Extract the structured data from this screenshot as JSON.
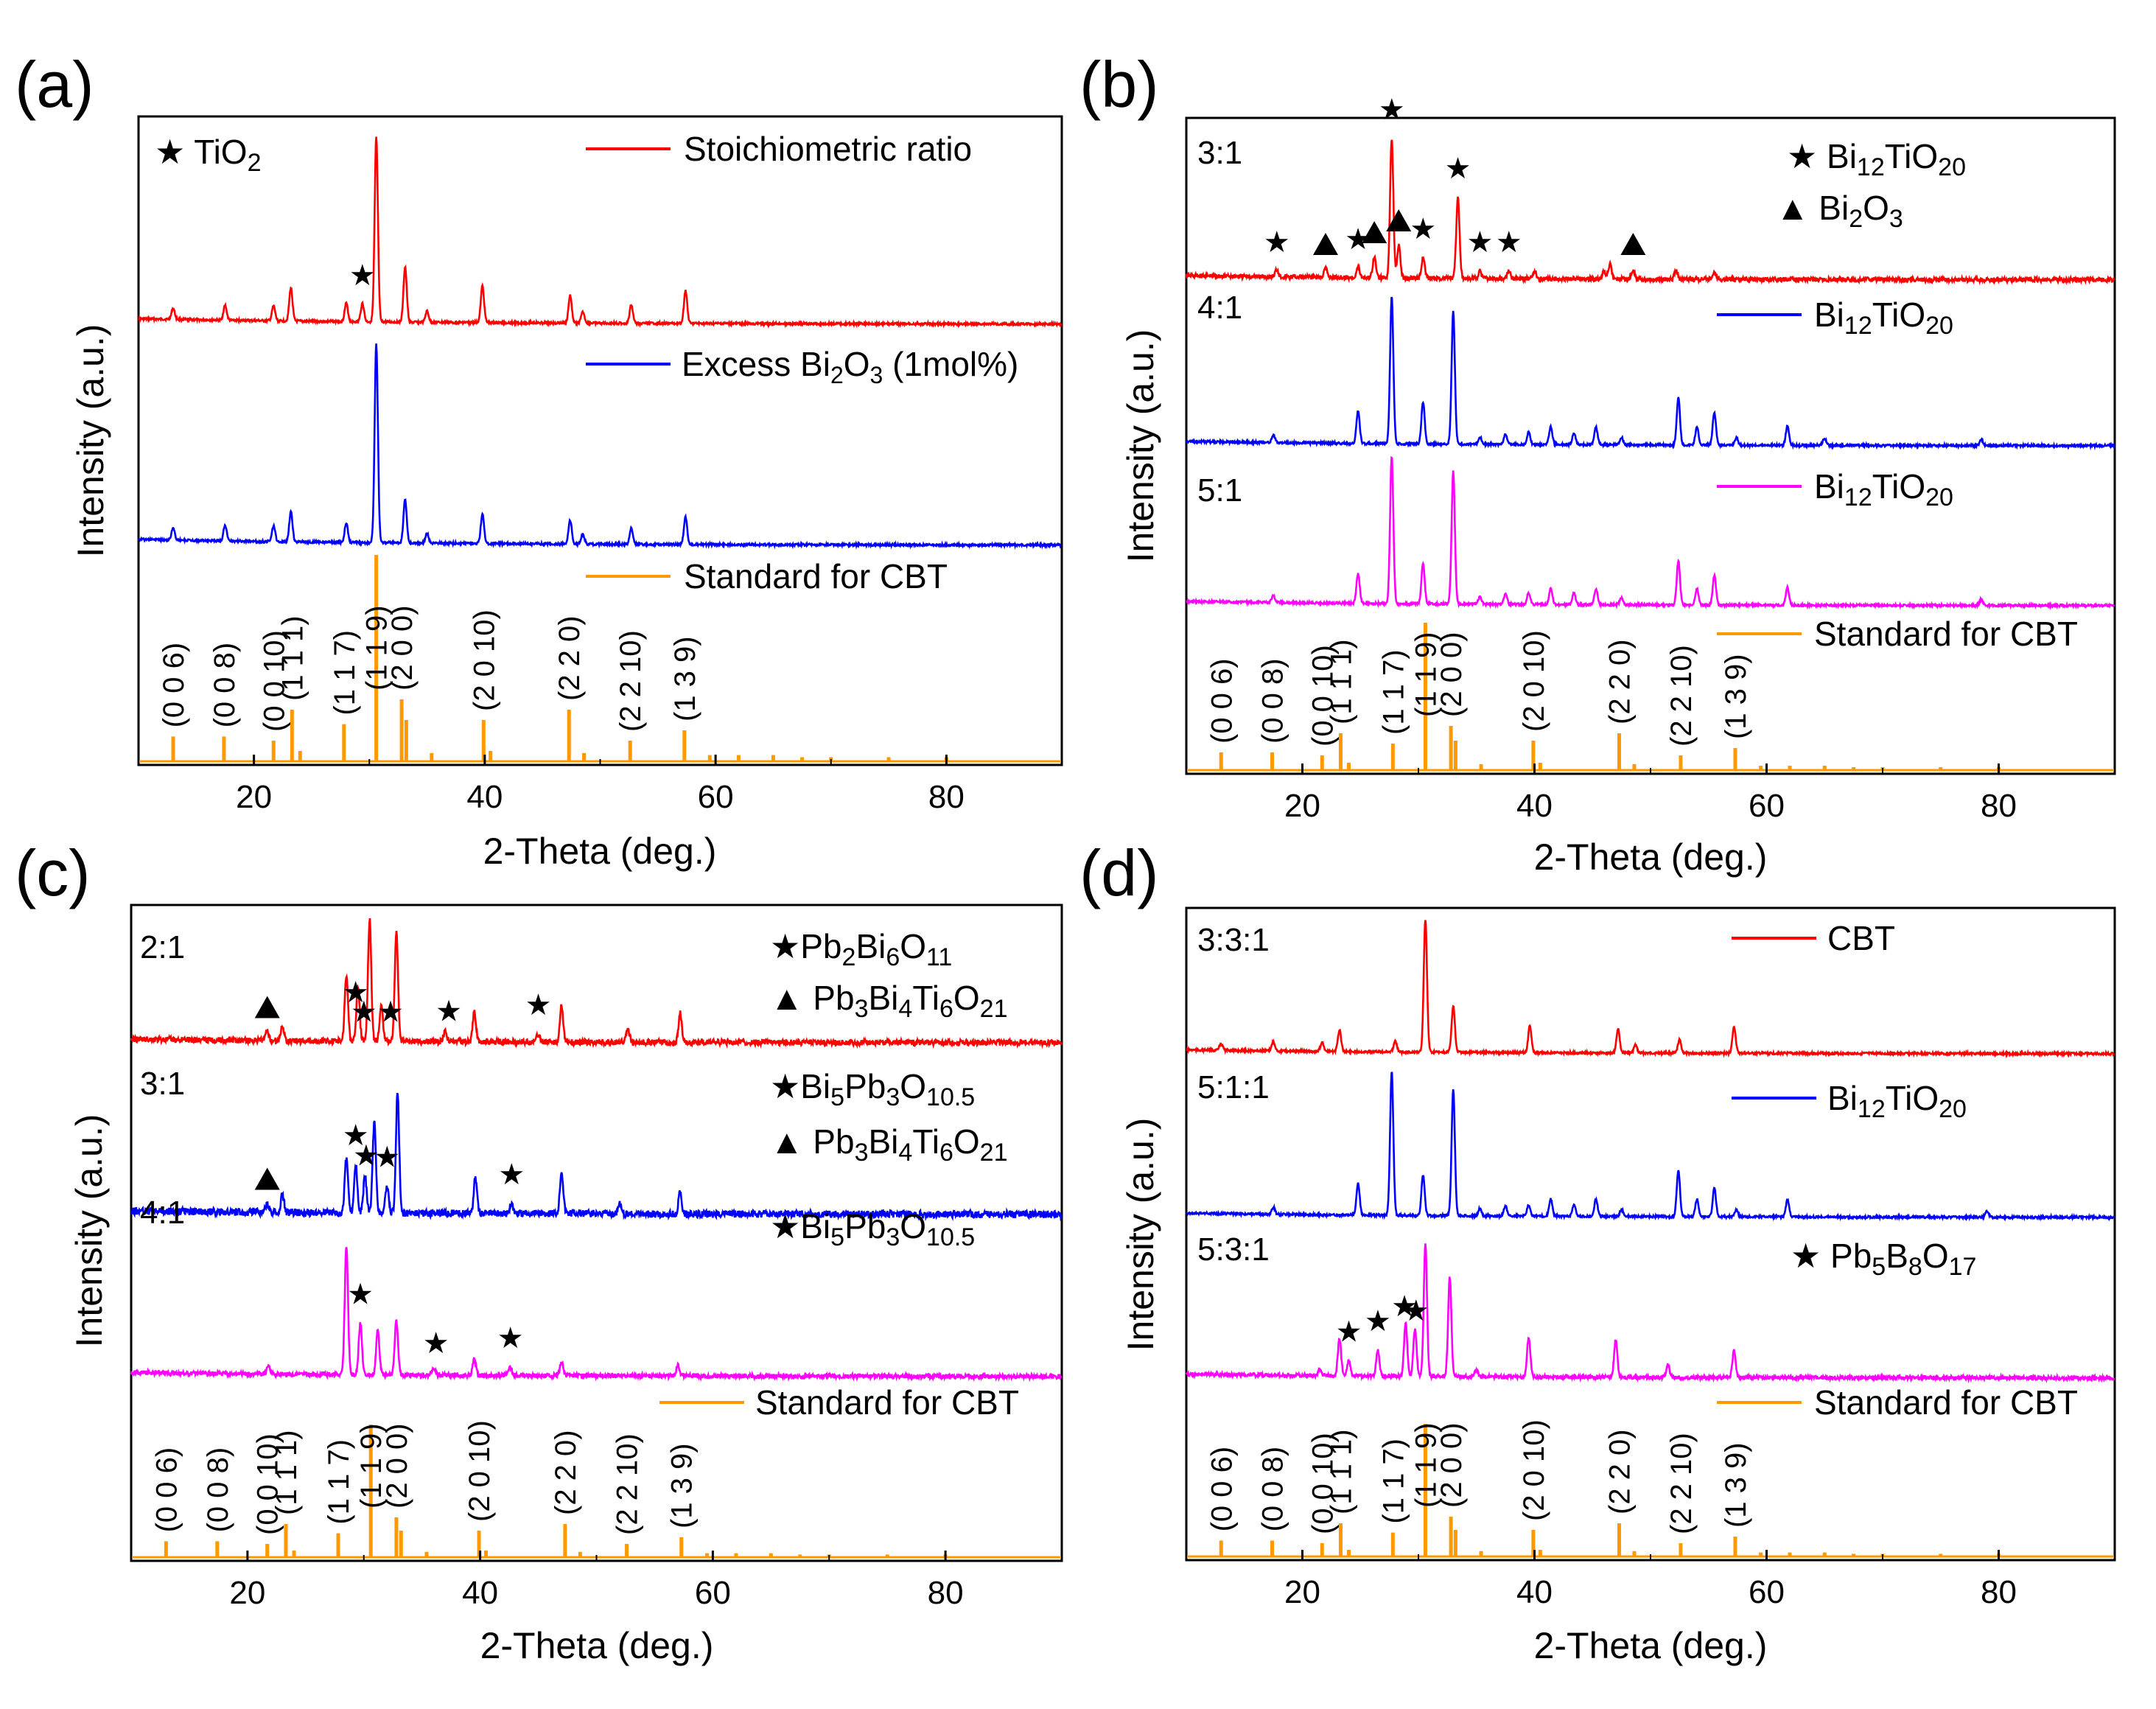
{
  "figure": {
    "panels": [
      {
        "id": "a",
        "label": "(a)"
      },
      {
        "id": "b",
        "label": "(b)"
      },
      {
        "id": "c",
        "label": "(c)"
      },
      {
        "id": "d",
        "label": "(d)"
      }
    ]
  },
  "colors": {
    "red": "#ff0000",
    "blue": "#0000ff",
    "magenta": "#ff00ff",
    "orange": "#ff9900",
    "black": "#000000"
  },
  "chart_data": [
    {
      "panel": "(a)",
      "type": "line",
      "xlabel": "2-Theta (deg.)",
      "ylabel": "Intensity (a.u.)",
      "xlim": [
        10,
        90
      ],
      "xticks": [
        20,
        40,
        60,
        80
      ],
      "marker_legend": [
        {
          "symbol": "star",
          "label": "TiO2"
        }
      ],
      "series": [
        {
          "name": "Stoichiometric ratio",
          "color": "#ff0000",
          "peaks": [
            [
              13,
              0.06
            ],
            [
              17.5,
              0.08
            ],
            [
              21.7,
              0.08
            ],
            [
              23.2,
              0.18
            ],
            [
              28,
              0.1
            ],
            [
              29.4,
              0.1
            ],
            [
              30.6,
              1.0
            ],
            [
              33.1,
              0.3
            ],
            [
              35,
              0.06
            ],
            [
              39.8,
              0.2
            ],
            [
              47.4,
              0.15
            ],
            [
              48.5,
              0.06
            ],
            [
              52.7,
              0.1
            ],
            [
              57.4,
              0.18
            ]
          ],
          "stars": [
            29.4
          ]
        },
        {
          "name": "Excess Bi2O3 (1mol%)",
          "color": "#0000ff",
          "peaks": [
            [
              13,
              0.06
            ],
            [
              17.5,
              0.08
            ],
            [
              21.7,
              0.08
            ],
            [
              23.2,
              0.15
            ],
            [
              28,
              0.1
            ],
            [
              30.6,
              1.0
            ],
            [
              33.1,
              0.22
            ],
            [
              35,
              0.05
            ],
            [
              39.8,
              0.15
            ],
            [
              47.4,
              0.12
            ],
            [
              48.5,
              0.05
            ],
            [
              52.7,
              0.08
            ],
            [
              57.4,
              0.14
            ]
          ]
        },
        {
          "name": "Standard for CBT",
          "color": "#ff9900",
          "standard": true
        }
      ]
    },
    {
      "panel": "(b)",
      "type": "line",
      "xlabel": "2-Theta (deg.)",
      "ylabel": "Intensity (a.u.)",
      "xlim": [
        10,
        90
      ],
      "xticks": [
        20,
        40,
        60,
        80
      ],
      "series": [
        {
          "name": "3:1",
          "ratio": "3:1",
          "legend": "Bi12TiO20 / Bi2O3",
          "color": "#ff0000",
          "peaks": [
            [
              17.8,
              0.05
            ],
            [
              22,
              0.06
            ],
            [
              24.8,
              0.07
            ],
            [
              26.2,
              0.14
            ],
            [
              27.7,
              0.95
            ],
            [
              28.3,
              0.22
            ],
            [
              30.4,
              0.14
            ],
            [
              33.4,
              0.55
            ],
            [
              35.3,
              0.05
            ],
            [
              37.8,
              0.05
            ],
            [
              40,
              0.05
            ],
            [
              46,
              0.05
            ],
            [
              46.5,
              0.1
            ],
            [
              48.5,
              0.06
            ],
            [
              52.2,
              0.06
            ],
            [
              55.5,
              0.05
            ]
          ],
          "stars": [
            17.8,
            24.8,
            27.7,
            30.4,
            33.4,
            35.3,
            37.8
          ],
          "triangles": [
            22,
            26.2,
            28.3,
            48.5
          ]
        },
        {
          "name": "4:1",
          "ratio": "4:1",
          "legend": "Bi12TiO20",
          "color": "#0000ff",
          "peaks": [
            [
              17.5,
              0.05
            ],
            [
              24.8,
              0.22
            ],
            [
              27.7,
              1.0
            ],
            [
              30.4,
              0.28
            ],
            [
              33,
              0.9
            ],
            [
              35.3,
              0.05
            ],
            [
              37.5,
              0.07
            ],
            [
              39.5,
              0.08
            ],
            [
              41.4,
              0.12
            ],
            [
              43.4,
              0.08
            ],
            [
              45.3,
              0.12
            ],
            [
              47.5,
              0.05
            ],
            [
              52.4,
              0.32
            ],
            [
              54,
              0.12
            ],
            [
              55.5,
              0.22
            ],
            [
              57.4,
              0.05
            ],
            [
              61.8,
              0.13
            ],
            [
              65,
              0.05
            ],
            [
              78.5,
              0.04
            ]
          ]
        },
        {
          "name": "5:1",
          "ratio": "5:1",
          "legend": "Bi12TiO20",
          "color": "#ff00ff",
          "peaks": [
            [
              17.5,
              0.05
            ],
            [
              24.8,
              0.2
            ],
            [
              27.7,
              1.0
            ],
            [
              30.4,
              0.27
            ],
            [
              33,
              0.9
            ],
            [
              35.3,
              0.05
            ],
            [
              37.5,
              0.07
            ],
            [
              39.5,
              0.08
            ],
            [
              41.4,
              0.11
            ],
            [
              43.4,
              0.08
            ],
            [
              45.3,
              0.11
            ],
            [
              47.5,
              0.05
            ],
            [
              52.4,
              0.3
            ],
            [
              54,
              0.11
            ],
            [
              55.5,
              0.2
            ],
            [
              61.8,
              0.12
            ],
            [
              78.5,
              0.04
            ]
          ]
        },
        {
          "name": "Standard for CBT",
          "color": "#ff9900",
          "standard": true
        }
      ]
    },
    {
      "panel": "(c)",
      "type": "line",
      "xlabel": "2-Theta (deg.)",
      "ylabel": "Intensity (a.u.)",
      "xlim": [
        10,
        90
      ],
      "xticks": [
        20,
        40,
        60,
        80
      ],
      "series": [
        {
          "name": "2:1",
          "ratio": "2:1",
          "legend": "Pb2Bi6O11 / Pb3Bi4Ti6O21",
          "color": "#ff0000",
          "peaks": [
            [
              21.7,
              0.07
            ],
            [
              23,
              0.12
            ],
            [
              28.5,
              0.55
            ],
            [
              29.5,
              0.45
            ],
            [
              30.5,
              1.0
            ],
            [
              31.5,
              0.3
            ],
            [
              32.8,
              0.9
            ],
            [
              37,
              0.08
            ],
            [
              39.5,
              0.25
            ],
            [
              45,
              0.06
            ],
            [
              47,
              0.3
            ],
            [
              52.7,
              0.1
            ],
            [
              57.2,
              0.24
            ]
          ],
          "stars": [
            29.3,
            30,
            32.3,
            37.3,
            45
          ],
          "triangles": [
            21.7
          ]
        },
        {
          "name": "3:1",
          "ratio": "3:1",
          "legend": "Bi5Pb3O10.5 / Pb3Bi4Ti6O21",
          "color": "#0000ff",
          "peaks": [
            [
              21.7,
              0.07
            ],
            [
              23,
              0.14
            ],
            [
              28.5,
              0.45
            ],
            [
              29.3,
              0.4
            ],
            [
              30.1,
              0.3
            ],
            [
              30.9,
              0.75
            ],
            [
              32,
              0.22
            ],
            [
              32.9,
              1.0
            ],
            [
              39.6,
              0.3
            ],
            [
              42.7,
              0.08
            ],
            [
              47,
              0.35
            ],
            [
              52,
              0.1
            ],
            [
              57.2,
              0.18
            ]
          ],
          "stars": [
            29.3,
            30.2,
            32,
            42.7
          ],
          "triangles": [
            21.7
          ]
        },
        {
          "name": "4:1",
          "ratio": "4:1",
          "legend": "Bi5Pb3O10.5",
          "color": "#ff00ff",
          "peaks": [
            [
              21.8,
              0.05
            ],
            [
              28.5,
              0.95
            ],
            [
              29.7,
              0.38
            ],
            [
              31.2,
              0.33
            ],
            [
              32.8,
              0.4
            ],
            [
              36,
              0.06
            ],
            [
              39.5,
              0.12
            ],
            [
              42.6,
              0.06
            ],
            [
              47,
              0.1
            ],
            [
              57,
              0.08
            ]
          ],
          "stars": [
            29.7,
            36.2,
            42.6
          ]
        },
        {
          "name": "Standard for CBT",
          "color": "#ff9900",
          "standard": true
        }
      ]
    },
    {
      "panel": "(d)",
      "type": "line",
      "xlabel": "2-Theta (deg.)",
      "ylabel": "Intensity (a.u.)",
      "xlim": [
        10,
        90
      ],
      "xticks": [
        20,
        40,
        60,
        80
      ],
      "series": [
        {
          "name": "3:3:1",
          "ratio": "3:3:1",
          "legend": "CBT",
          "color": "#ff0000",
          "peaks": [
            [
              13,
              0.05
            ],
            [
              17.5,
              0.07
            ],
            [
              21.7,
              0.07
            ],
            [
              23.2,
              0.16
            ],
            [
              28,
              0.08
            ],
            [
              30.6,
              1.0
            ],
            [
              33,
              0.35
            ],
            [
              39.6,
              0.2
            ],
            [
              47.2,
              0.18
            ],
            [
              48.7,
              0.06
            ],
            [
              52.5,
              0.1
            ],
            [
              57.2,
              0.2
            ]
          ]
        },
        {
          "name": "5:1:1",
          "ratio": "5:1:1",
          "legend": "Bi12TiO20",
          "color": "#0000ff",
          "peaks": [
            [
              17.5,
              0.05
            ],
            [
              24.8,
              0.22
            ],
            [
              27.7,
              1.0
            ],
            [
              30.4,
              0.28
            ],
            [
              33,
              0.88
            ],
            [
              35.3,
              0.05
            ],
            [
              37.5,
              0.07
            ],
            [
              39.5,
              0.08
            ],
            [
              41.4,
              0.12
            ],
            [
              43.4,
              0.08
            ],
            [
              45.3,
              0.12
            ],
            [
              47.5,
              0.05
            ],
            [
              52.4,
              0.32
            ],
            [
              54,
              0.12
            ],
            [
              55.5,
              0.2
            ],
            [
              57.4,
              0.05
            ],
            [
              61.8,
              0.12
            ],
            [
              79,
              0.04
            ]
          ]
        },
        {
          "name": "5:3:1",
          "ratio": "5:3:1",
          "legend": "Pb5B8O17",
          "color": "#ff00ff",
          "peaks": [
            [
              21.5,
              0.05
            ],
            [
              23.2,
              0.28
            ],
            [
              24,
              0.12
            ],
            [
              26.5,
              0.2
            ],
            [
              28.9,
              0.4
            ],
            [
              29.7,
              0.36
            ],
            [
              30.6,
              1.0
            ],
            [
              32.7,
              0.75
            ],
            [
              35,
              0.05
            ],
            [
              39.5,
              0.3
            ],
            [
              47,
              0.28
            ],
            [
              51.5,
              0.1
            ],
            [
              57.2,
              0.2
            ]
          ],
          "stars": [
            24,
            26.5,
            28.8,
            29.8
          ]
        },
        {
          "name": "Standard for CBT",
          "color": "#ff9900",
          "standard": true
        }
      ]
    }
  ],
  "cbt_standard": {
    "peaks": [
      [
        13,
        0.12
      ],
      [
        17.4,
        0.12
      ],
      [
        21.7,
        0.1
      ],
      [
        23.3,
        0.25
      ],
      [
        24,
        0.05
      ],
      [
        27.8,
        0.18
      ],
      [
        30.6,
        1.0
      ],
      [
        32.8,
        0.3
      ],
      [
        33.2,
        0.2
      ],
      [
        35.4,
        0.04
      ],
      [
        39.9,
        0.2
      ],
      [
        40.5,
        0.05
      ],
      [
        47.3,
        0.25
      ],
      [
        48.6,
        0.04
      ],
      [
        52.6,
        0.1
      ],
      [
        57.3,
        0.15
      ],
      [
        59.5,
        0.03
      ],
      [
        62,
        0.03
      ],
      [
        65,
        0.03
      ],
      [
        67.5,
        0.02
      ],
      [
        70,
        0.02
      ],
      [
        75,
        0.02
      ],
      [
        80,
        0.02
      ]
    ],
    "hkl": [
      {
        "x": 13,
        "label": "(0 0 6)"
      },
      {
        "x": 17.4,
        "label": "(0 0 8)"
      },
      {
        "x": 21.7,
        "label": "(0 0 10)"
      },
      {
        "x": 23.3,
        "label": "(1 1 1)"
      },
      {
        "x": 27.8,
        "label": "(1 1 7)"
      },
      {
        "x": 30.6,
        "label": "(1 1 9)"
      },
      {
        "x": 32.8,
        "label": "(2 0 0)"
      },
      {
        "x": 39.9,
        "label": "(2 0 10)"
      },
      {
        "x": 47.3,
        "label": "(2 2 0)"
      },
      {
        "x": 52.6,
        "label": "(2 2 10)"
      },
      {
        "x": 57.3,
        "label": "(1 3 9)"
      }
    ]
  }
}
